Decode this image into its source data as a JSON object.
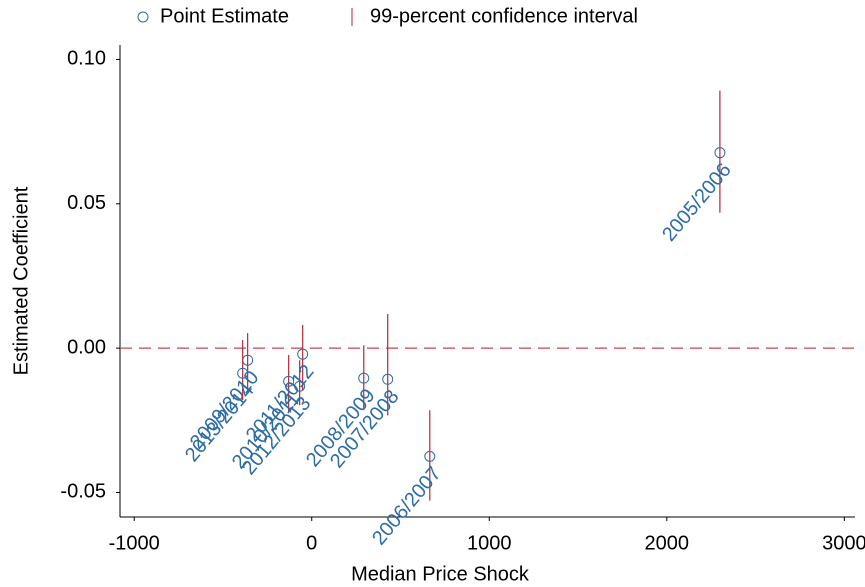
{
  "chart_data": {
    "type": "scatter",
    "xlabel": "Median Price Shock",
    "ylabel": "Estimated Coefficient",
    "legend": [
      {
        "name": "Point Estimate",
        "color": "#2e6ca4"
      },
      {
        "name": "99-percent confidence interval",
        "color": "#b2293a"
      }
    ],
    "point_labels": [
      "2005/2006",
      "2006/2007",
      "2007/2008",
      "2008/2009",
      "2009/2010",
      "2013/2014",
      "2010/2011",
      "2012/2013",
      "2011/2012"
    ],
    "x": [
      2299,
      665,
      428,
      293,
      -361,
      -389,
      -130,
      -68,
      -51
    ],
    "values": [
      0.0677,
      -0.0375,
      -0.0108,
      -0.0104,
      -0.0042,
      -0.0087,
      -0.0115,
      -0.0132,
      -0.0021
    ],
    "ci_low": [
      0.0469,
      -0.0528,
      -0.0233,
      -0.0215,
      -0.0153,
      -0.018,
      -0.0222,
      -0.0198,
      -0.0146
    ],
    "ci_high": [
      0.0892,
      -0.0215,
      0.0118,
      0.001,
      0.0052,
      0.0028,
      -0.0024,
      -0.0042,
      0.008
    ],
    "label_color": "#2e6ca4",
    "hline": {
      "value": 0,
      "color": "#c0474f"
    },
    "xlim": [
      -1080,
      3060
    ],
    "ylim": [
      -0.0585,
      0.105
    ],
    "xticks": [
      -1000,
      0,
      1000,
      2000,
      3000
    ],
    "yticks": [
      {
        "value": 0.1,
        "label": "0.10"
      },
      {
        "value": 0.05,
        "label": "0.05"
      },
      {
        "value": 0,
        "label": "0.00"
      },
      {
        "value": -0.05,
        "label": "-0.05"
      }
    ]
  }
}
